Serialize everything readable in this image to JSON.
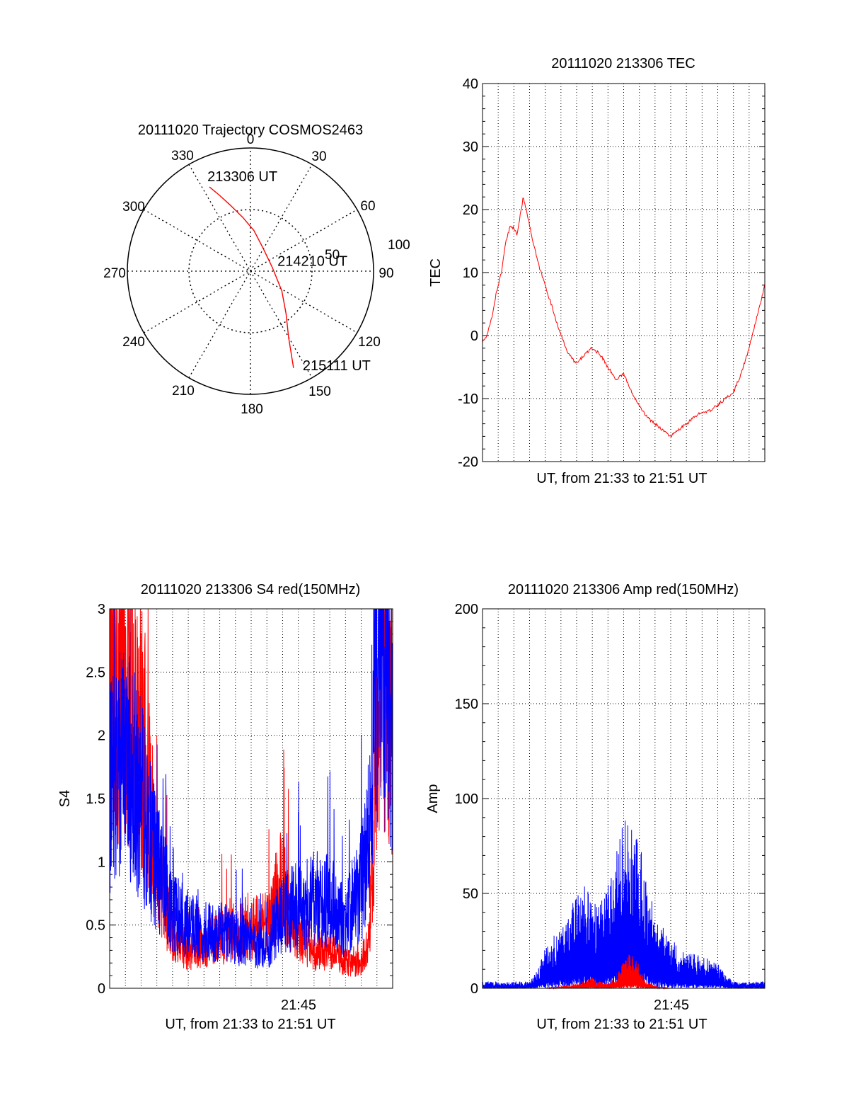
{
  "chart_data": [
    {
      "type": "polar",
      "title": "20111020 Trajectory COSMOS2463",
      "angle_labels": [
        "0",
        "30",
        "60",
        "90",
        "120",
        "150",
        "180",
        "210",
        "240",
        "270",
        "300",
        "330"
      ],
      "radius_labels": [
        "50",
        "100"
      ],
      "rlim": [
        0,
        100
      ],
      "grid": true,
      "series": [
        {
          "color": "#ff0000",
          "points": [
            [
              334,
              76
            ],
            [
              338,
              66
            ],
            [
              343,
              56
            ],
            [
              352,
              44
            ],
            [
              5,
              33
            ],
            [
              30,
              21
            ],
            [
              80,
              18
            ],
            [
              122,
              30
            ],
            [
              140,
              45
            ],
            [
              150,
              62
            ],
            [
              154,
              76
            ],
            [
              156,
              86
            ]
          ]
        }
      ],
      "annotations": [
        {
          "text": "213306 UT",
          "angle": 347,
          "radius": 79
        },
        {
          "text": "214210 UT",
          "angle": 78,
          "radius": 40
        },
        {
          "text": "215111 UT",
          "angle": 142,
          "radius": 97
        }
      ]
    },
    {
      "type": "line",
      "title": "20111020 213306 TEC",
      "xlabel": "UT, from 21:33 to 21:51 UT",
      "ylabel": "TEC",
      "yticks": [
        "-20",
        "-10",
        "0",
        "10",
        "20",
        "30",
        "40"
      ],
      "ylim": [
        -20,
        40
      ],
      "xlim": [
        0,
        18
      ],
      "grid": true,
      "series": [
        {
          "color": "#ff0000",
          "x": [
            0,
            0.3,
            0.6,
            0.9,
            1.2,
            1.5,
            1.8,
            2.0,
            2.2,
            2.4,
            2.6,
            2.8,
            3.2,
            3.6,
            4.0,
            4.5,
            5.0,
            5.5,
            6.0,
            6.5,
            7.0,
            7.5,
            8.0,
            8.5,
            9.0,
            9.5,
            10.0,
            10.5,
            11.0,
            11.5,
            12.0,
            12.5,
            13.0,
            13.5,
            14.0,
            14.5,
            15.0,
            15.5,
            16.0,
            16.5,
            17.0,
            17.5,
            18.0
          ],
          "y": [
            -1,
            0,
            3,
            7,
            10,
            15,
            17.5,
            17,
            16,
            19,
            22,
            20,
            15,
            11,
            8,
            4,
            0,
            -3,
            -4.5,
            -3,
            -2,
            -3,
            -5,
            -7,
            -6,
            -9,
            -11,
            -13,
            -14,
            -15,
            -16,
            -15,
            -14,
            -13,
            -12,
            -12,
            -11,
            -10,
            -9,
            -6,
            -2,
            3,
            8
          ]
        }
      ]
    },
    {
      "type": "line",
      "title": "20111020 213306 S4 red(150MHz)",
      "xlabel": "UT, from 21:33 to 21:51 UT",
      "ylabel": "S4",
      "yticks": [
        "0",
        "0.5",
        "1",
        "1.5",
        "2",
        "2.5",
        "3"
      ],
      "xtick_label": "21:45",
      "ylim": [
        0,
        3
      ],
      "xlim": [
        0,
        18
      ],
      "grid": true,
      "series": [
        {
          "color": "#ff0000",
          "x": [
            0,
            1,
            2,
            2.5,
            3,
            4,
            5,
            6,
            7,
            8,
            9,
            10,
            10.5,
            11,
            11.5,
            12,
            13,
            14,
            15,
            16,
            16.5,
            17,
            17.5,
            18
          ],
          "y": [
            2.4,
            2.6,
            2.0,
            1.6,
            0.9,
            0.45,
            0.3,
            0.35,
            0.4,
            0.45,
            0.5,
            0.5,
            0.7,
            0.8,
            0.55,
            0.45,
            0.3,
            0.3,
            0.2,
            0.2,
            0.4,
            2.0,
            2.7,
            2.3
          ]
        },
        {
          "color": "#0000ff",
          "x": [
            0,
            1,
            2,
            2.5,
            3,
            4,
            5,
            6,
            7,
            8,
            9,
            10,
            10.5,
            11,
            12,
            13,
            14,
            15,
            15.5,
            16,
            16.5,
            17,
            17.5,
            18
          ],
          "y": [
            1.6,
            1.8,
            1.5,
            1.2,
            1.0,
            0.6,
            0.5,
            0.45,
            0.45,
            0.4,
            0.35,
            0.3,
            0.5,
            0.6,
            0.65,
            0.7,
            0.7,
            0.5,
            0.7,
            0.8,
            1.2,
            2.8,
            2.6,
            2.2
          ]
        }
      ]
    },
    {
      "type": "line",
      "title": "20111020 213306 Amp red(150MHz)",
      "xlabel": "UT, from 21:33 to 21:51 UT",
      "ylabel": "Amp",
      "yticks": [
        "0",
        "50",
        "100",
        "150",
        "200"
      ],
      "xtick_label": "21:45",
      "ylim": [
        0,
        200
      ],
      "xlim": [
        0,
        18
      ],
      "grid": true,
      "series": [
        {
          "color": "#0000ff",
          "x": [
            0,
            1,
            2,
            3,
            3.5,
            4,
            5,
            6,
            6.5,
            7,
            7.5,
            8,
            8.5,
            9,
            9.5,
            10,
            10.5,
            11,
            12,
            13,
            14,
            15,
            15.5,
            16,
            17,
            18
          ],
          "y": [
            3,
            3,
            3,
            3,
            8,
            18,
            30,
            40,
            45,
            42,
            38,
            48,
            60,
            75,
            70,
            65,
            48,
            32,
            22,
            16,
            14,
            12,
            6,
            3,
            3,
            3
          ]
        },
        {
          "color": "#ff0000",
          "x": [
            0,
            4,
            5,
            6,
            6.5,
            7,
            7.5,
            8,
            8.5,
            9,
            9.5,
            10,
            10.5,
            11,
            12,
            18
          ],
          "y": [
            0,
            0,
            1,
            2,
            3,
            5,
            3,
            2,
            5,
            12,
            16,
            10,
            3,
            1,
            0,
            0
          ]
        }
      ]
    }
  ]
}
